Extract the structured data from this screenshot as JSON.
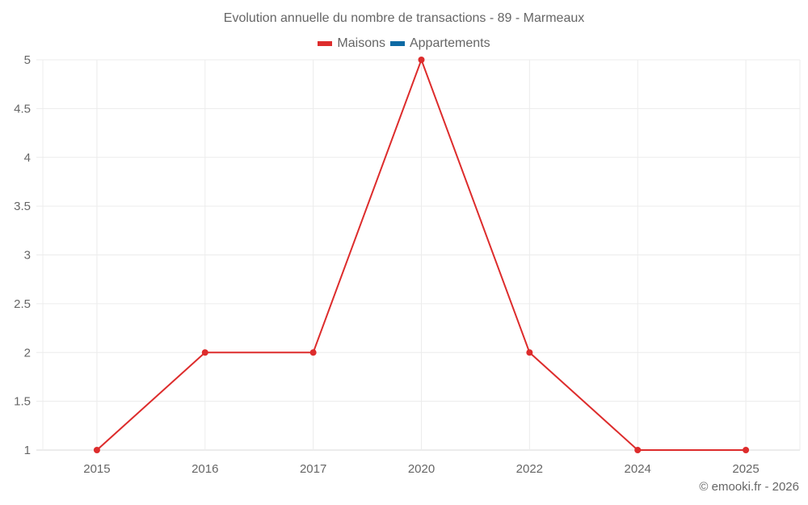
{
  "chart": {
    "title": "Evolution annuelle du nombre de transactions - 89 - Marmeaux",
    "credit": "© emooki.fr - 2026",
    "legend": [
      {
        "label": "Maisons",
        "color": "#dd2c2c"
      },
      {
        "label": "Appartements",
        "color": "#0e6aa4"
      }
    ]
  },
  "chart_data": {
    "type": "line",
    "title": "Evolution annuelle du nombre de transactions - 89 - Marmeaux",
    "xlabel": "",
    "ylabel": "",
    "categories": [
      "2015",
      "2016",
      "2017",
      "2020",
      "2022",
      "2024",
      "2025"
    ],
    "series": [
      {
        "name": "Maisons",
        "color": "#dd2c2c",
        "values": [
          1,
          2,
          2,
          5,
          2,
          1,
          1
        ]
      },
      {
        "name": "Appartements",
        "color": "#0e6aa4",
        "values": []
      }
    ],
    "ylim": [
      1,
      5
    ],
    "yticks": [
      "1",
      "1.5",
      "2",
      "2.5",
      "3",
      "3.5",
      "4",
      "4.5",
      "5"
    ],
    "grid": true,
    "legend_position": "top"
  }
}
